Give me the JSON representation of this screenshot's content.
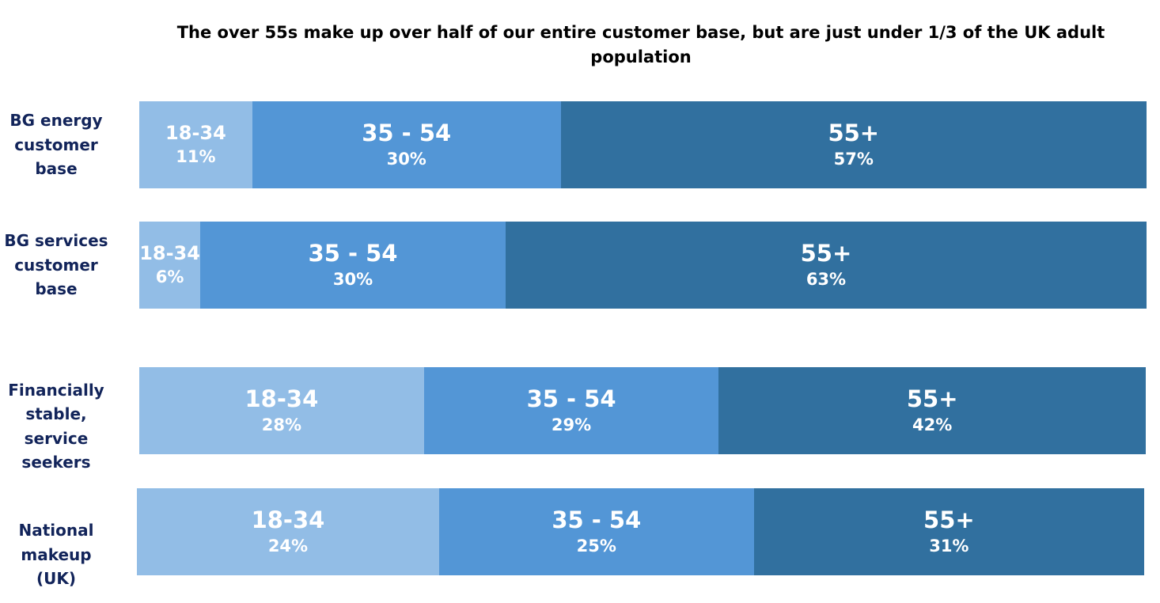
{
  "chart_data": {
    "type": "bar",
    "orientation": "horizontal",
    "stacked": true,
    "title": "The over 55s make up over half of our entire customer base, but are just under 1/3 of the UK adult population",
    "xlabel": "",
    "ylabel": "",
    "grid": false,
    "legend": "none",
    "categories": [
      "BG energy customer base",
      "BG services customer base",
      "Financially stable, service seekers",
      "National makeup (UK)"
    ],
    "series": [
      {
        "name": "18-34",
        "values": [
          11,
          6,
          28,
          24
        ],
        "labels": [
          "11%",
          "6%",
          "28%",
          "24%"
        ],
        "color": "#92bde6"
      },
      {
        "name": "35 - 54",
        "values": [
          30,
          30,
          29,
          25
        ],
        "labels": [
          "30%",
          "30%",
          "29%",
          "25%"
        ],
        "color": "#5396d6"
      },
      {
        "name": "55+",
        "values": [
          57,
          63,
          42,
          31
        ],
        "labels": [
          "57%",
          "63%",
          "42%",
          "31%"
        ],
        "color": "#31709f"
      }
    ]
  }
}
